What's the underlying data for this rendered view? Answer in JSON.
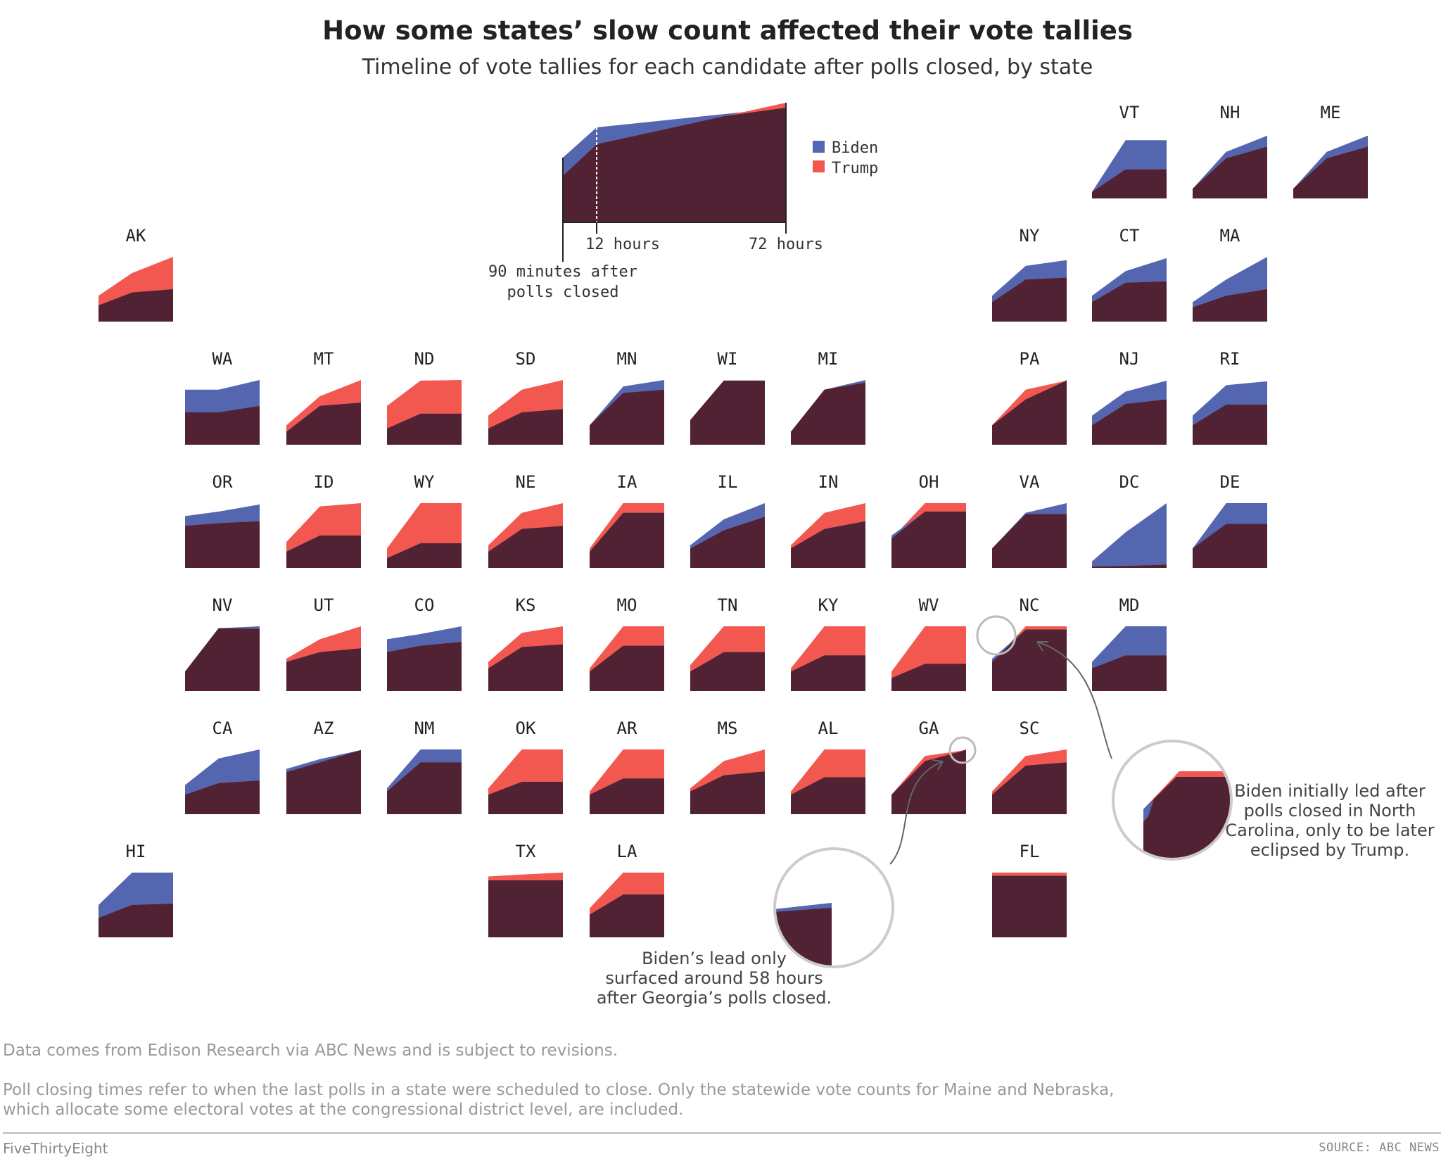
{
  "title": "How some states’ slow count affected their vote tallies",
  "subtitle": "Timeline of vote tallies for each candidate after polls closed, by state",
  "colors": {
    "biden": "#5566b0",
    "trump": "#f2584f",
    "both": "#512233"
  },
  "legend": {
    "biden": "Biden",
    "trump": "Trump"
  },
  "key_labels": {
    "t12": "12 hours",
    "t72": "72 hours",
    "start_line1": "90 minutes after",
    "start_line2": "polls closed"
  },
  "notes": {
    "line1": "Data comes from Edison Research via ABC News and is subject to revisions.",
    "line2": "Poll closing times refer to when the last polls in a state were scheduled to close. Only the statewide vote counts for Maine and Nebraska,",
    "line3": "which allocate some electoral votes at the congressional district level, are included."
  },
  "footer": {
    "brand": "FiveThirtyEight",
    "source": "SOURCE: ABC NEWS"
  },
  "callouts": {
    "nc": [
      "Biden initially led after",
      "polls closed in North",
      "Carolina, only to be later",
      "eclipsed by Trump."
    ],
    "ga": [
      "Biden’s lead only",
      "surfaced around 58 hours",
      "after Georgia’s polls closed."
    ]
  },
  "chart_data": {
    "type": "area",
    "description_axis": "x: hours after polls closed (1.5 to 72); values: share of final winner tally",
    "x_keypoints": [
      "90 minutes after polls closed",
      "12 hours",
      "72 hours"
    ],
    "legend": [
      "Biden",
      "Trump"
    ],
    "states": [
      {
        "code": "VT",
        "biden": [
          0.1,
          0.9,
          0.9
        ],
        "trump": [
          0.1,
          0.45,
          0.45
        ]
      },
      {
        "code": "NH",
        "biden": [
          0.15,
          0.72,
          0.97
        ],
        "trump": [
          0.15,
          0.62,
          0.8
        ]
      },
      {
        "code": "ME",
        "biden": [
          0.15,
          0.72,
          0.97
        ],
        "trump": [
          0.15,
          0.62,
          0.8
        ]
      },
      {
        "code": "AK",
        "biden": [
          0.25,
          0.45,
          0.5
        ],
        "trump": [
          0.4,
          0.75,
          1.0
        ]
      },
      {
        "code": "NY",
        "biden": [
          0.4,
          0.86,
          0.95
        ],
        "trump": [
          0.3,
          0.65,
          0.68
        ]
      },
      {
        "code": "CT",
        "biden": [
          0.4,
          0.78,
          0.98
        ],
        "trump": [
          0.3,
          0.6,
          0.62
        ]
      },
      {
        "code": "MA",
        "biden": [
          0.3,
          0.65,
          1.0
        ],
        "trump": [
          0.22,
          0.4,
          0.5
        ]
      },
      {
        "code": "WA",
        "biden": [
          0.85,
          0.85,
          1.0
        ],
        "trump": [
          0.5,
          0.5,
          0.6
        ]
      },
      {
        "code": "MT",
        "biden": [
          0.2,
          0.6,
          0.65
        ],
        "trump": [
          0.3,
          0.75,
          1.0
        ]
      },
      {
        "code": "ND",
        "biden": [
          0.25,
          0.48,
          0.48
        ],
        "trump": [
          0.6,
          0.99,
          1.0
        ]
      },
      {
        "code": "SD",
        "biden": [
          0.25,
          0.5,
          0.55
        ],
        "trump": [
          0.45,
          0.85,
          1.0
        ]
      },
      {
        "code": "MN",
        "biden": [
          0.3,
          0.9,
          1.0
        ],
        "trump": [
          0.3,
          0.8,
          0.85
        ]
      },
      {
        "code": "WI",
        "biden": [
          0.38,
          0.99,
          0.99
        ],
        "trump": [
          0.38,
          0.99,
          0.99
        ]
      },
      {
        "code": "MI",
        "biden": [
          0.2,
          0.85,
          1.0
        ],
        "trump": [
          0.2,
          0.85,
          0.96
        ]
      },
      {
        "code": "PA",
        "biden": [
          0.3,
          0.7,
          1.0
        ],
        "trump": [
          0.3,
          0.85,
          0.99
        ]
      },
      {
        "code": "NJ",
        "biden": [
          0.45,
          0.82,
          0.99
        ],
        "trump": [
          0.3,
          0.63,
          0.7
        ]
      },
      {
        "code": "RI",
        "biden": [
          0.45,
          0.92,
          0.98
        ],
        "trump": [
          0.3,
          0.62,
          0.62
        ]
      },
      {
        "code": "OR",
        "biden": [
          0.8,
          0.87,
          0.98
        ],
        "trump": [
          0.65,
          0.69,
          0.72
        ]
      },
      {
        "code": "ID",
        "biden": [
          0.25,
          0.5,
          0.5
        ],
        "trump": [
          0.4,
          0.95,
          1.0
        ]
      },
      {
        "code": "WY",
        "biden": [
          0.15,
          0.38,
          0.38
        ],
        "trump": [
          0.3,
          1.0,
          1.0
        ]
      },
      {
        "code": "NE",
        "biden": [
          0.25,
          0.6,
          0.65
        ],
        "trump": [
          0.35,
          0.85,
          1.0
        ]
      },
      {
        "code": "IA",
        "biden": [
          0.25,
          0.85,
          0.85
        ],
        "trump": [
          0.3,
          1.0,
          1.0
        ]
      },
      {
        "code": "IL",
        "biden": [
          0.35,
          0.75,
          1.0
        ],
        "trump": [
          0.3,
          0.58,
          0.79
        ]
      },
      {
        "code": "IN",
        "biden": [
          0.3,
          0.6,
          0.72
        ],
        "trump": [
          0.35,
          0.85,
          1.0
        ]
      },
      {
        "code": "OH",
        "biden": [
          0.5,
          0.87,
          0.87
        ],
        "trump": [
          0.45,
          1.0,
          1.0
        ]
      },
      {
        "code": "VA",
        "biden": [
          0.3,
          0.85,
          1.0
        ],
        "trump": [
          0.3,
          0.83,
          0.83
        ]
      },
      {
        "code": "DC",
        "biden": [
          0.1,
          0.55,
          1.0
        ],
        "trump": [
          0.02,
          0.03,
          0.05
        ]
      },
      {
        "code": "DE",
        "biden": [
          0.3,
          1.0,
          1.0
        ],
        "trump": [
          0.3,
          0.68,
          0.68
        ]
      },
      {
        "code": "NV",
        "biden": [
          0.3,
          0.97,
          1.0
        ],
        "trump": [
          0.3,
          0.97,
          0.96
        ]
      },
      {
        "code": "UT",
        "biden": [
          0.45,
          0.6,
          0.66
        ],
        "trump": [
          0.5,
          0.8,
          1.0
        ]
      },
      {
        "code": "CO",
        "biden": [
          0.8,
          0.88,
          1.0
        ],
        "trump": [
          0.6,
          0.7,
          0.76
        ]
      },
      {
        "code": "KS",
        "biden": [
          0.35,
          0.68,
          0.72
        ],
        "trump": [
          0.45,
          0.9,
          1.0
        ]
      },
      {
        "code": "MO",
        "biden": [
          0.3,
          0.7,
          0.7
        ],
        "trump": [
          0.35,
          1.0,
          1.0
        ]
      },
      {
        "code": "TN",
        "biden": [
          0.3,
          0.6,
          0.6
        ],
        "trump": [
          0.4,
          1.0,
          1.0
        ]
      },
      {
        "code": "KY",
        "biden": [
          0.3,
          0.55,
          0.55
        ],
        "trump": [
          0.35,
          1.0,
          1.0
        ]
      },
      {
        "code": "WV",
        "biden": [
          0.2,
          0.42,
          0.42
        ],
        "trump": [
          0.3,
          1.0,
          1.0
        ]
      },
      {
        "code": "NC",
        "biden": [
          0.5,
          0.95,
          0.95
        ],
        "trump": [
          0.45,
          1.0,
          1.0
        ]
      },
      {
        "code": "MD",
        "biden": [
          0.45,
          1.0,
          1.0
        ],
        "trump": [
          0.35,
          0.55,
          0.55
        ]
      },
      {
        "code": "CA",
        "biden": [
          0.45,
          0.86,
          1.0
        ],
        "trump": [
          0.3,
          0.48,
          0.52
        ]
      },
      {
        "code": "AZ",
        "biden": [
          0.7,
          0.85,
          0.99
        ],
        "trump": [
          0.65,
          0.8,
          0.99
        ]
      },
      {
        "code": "NM",
        "biden": [
          0.4,
          1.0,
          1.0
        ],
        "trump": [
          0.35,
          0.8,
          0.8
        ]
      },
      {
        "code": "OK",
        "biden": [
          0.3,
          0.5,
          0.5
        ],
        "trump": [
          0.4,
          1.0,
          1.0
        ]
      },
      {
        "code": "AR",
        "biden": [
          0.3,
          0.55,
          0.55
        ],
        "trump": [
          0.35,
          1.0,
          1.0
        ]
      },
      {
        "code": "MS",
        "biden": [
          0.35,
          0.6,
          0.66
        ],
        "trump": [
          0.4,
          0.82,
          1.0
        ]
      },
      {
        "code": "AL",
        "biden": [
          0.3,
          0.57,
          0.57
        ],
        "trump": [
          0.35,
          1.0,
          1.0
        ]
      },
      {
        "code": "GA",
        "biden": [
          0.3,
          0.82,
          1.0
        ],
        "trump": [
          0.3,
          0.9,
          0.99
        ]
      },
      {
        "code": "SC",
        "biden": [
          0.3,
          0.75,
          0.8
        ],
        "trump": [
          0.35,
          0.9,
          1.0
        ]
      },
      {
        "code": "HI",
        "biden": [
          0.5,
          1.0,
          1.0
        ],
        "trump": [
          0.3,
          0.5,
          0.52
        ]
      },
      {
        "code": "TX",
        "biden": [
          0.88,
          0.88,
          0.88
        ],
        "trump": [
          0.94,
          0.97,
          1.0
        ]
      },
      {
        "code": "LA",
        "biden": [
          0.35,
          0.66,
          0.66
        ],
        "trump": [
          0.45,
          1.0,
          1.0
        ]
      },
      {
        "code": "FL",
        "biden": [
          0.95,
          0.95,
          0.95
        ],
        "trump": [
          1.0,
          1.0,
          1.0
        ]
      }
    ]
  }
}
